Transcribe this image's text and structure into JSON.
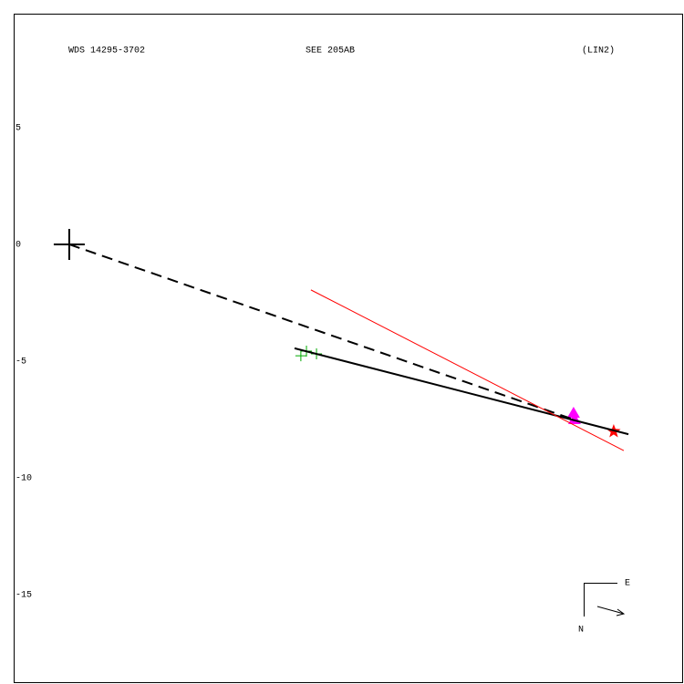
{
  "chart_data": {
    "type": "scatter",
    "title": "WDS 14295-3702",
    "subtitle": "SEE 205AB",
    "annotation": "(LIN2)",
    "compass": {
      "east": "E",
      "north": "N"
    },
    "xlim": [
      -2.38,
      26.33
    ],
    "ylim": [
      -18.75,
      9.88
    ],
    "yticks": [
      5,
      0,
      -5,
      -10,
      -15
    ],
    "grid": false,
    "series": [
      {
        "color": "#000000",
        "marker": "big-plus",
        "x": [
          0
        ],
        "values": [
          0
        ]
      },
      {
        "color": "#00aa00",
        "marker": "plus",
        "x": [
          9.92,
          10.16,
          10.59
        ],
        "values": [
          -4.77,
          -4.57,
          -4.69
        ]
      },
      {
        "color": "#ff00ff",
        "marker": "triangle",
        "x": [
          21.6,
          21.64
        ],
        "values": [
          -7.23,
          -7.5
        ]
      },
      {
        "color": "#ff0000",
        "marker": "star",
        "x": [
          23.32
        ],
        "values": [
          -8.01
        ]
      },
      {
        "color": "#000000",
        "line": "solid",
        "width": 2,
        "x": [
          9.65,
          23.95
        ],
        "values": [
          -4.45,
          -8.13
        ]
      },
      {
        "color": "#000000",
        "line": "dashed",
        "width": 2,
        "x": [
          0,
          21.6
        ],
        "values": [
          0,
          -7.5
        ]
      },
      {
        "color": "#ff0000",
        "line": "solid",
        "width": 1,
        "x": [
          10.35,
          23.75
        ],
        "values": [
          -1.95,
          -8.83
        ]
      }
    ]
  }
}
